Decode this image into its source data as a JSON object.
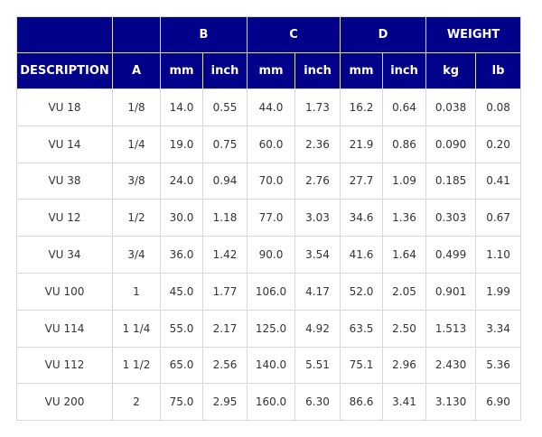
{
  "table": {
    "group_headers": {
      "b": "B",
      "c": "C",
      "d": "D",
      "weight": "WEIGHT"
    },
    "sub_headers": {
      "description": "DESCRIPTION",
      "a": "A",
      "b_mm": "mm",
      "b_inch": "inch",
      "c_mm": "mm",
      "c_inch": "inch",
      "d_mm": "mm",
      "d_inch": "inch",
      "kg": "kg",
      "lb": "lb"
    },
    "rows": [
      [
        "VU 18",
        "1/8",
        "14.0",
        "0.55",
        "44.0",
        "1.73",
        "16.2",
        "0.64",
        "0.038",
        "0.08"
      ],
      [
        "VU 14",
        "1/4",
        "19.0",
        "0.75",
        "60.0",
        "2.36",
        "21.9",
        "0.86",
        "0.090",
        "0.20"
      ],
      [
        "VU 38",
        "3/8",
        "24.0",
        "0.94",
        "70.0",
        "2.76",
        "27.7",
        "1.09",
        "0.185",
        "0.41"
      ],
      [
        "VU 12",
        "1/2",
        "30.0",
        "1.18",
        "77.0",
        "3.03",
        "34.6",
        "1.36",
        "0.303",
        "0.67"
      ],
      [
        "VU 34",
        "3/4",
        "36.0",
        "1.42",
        "90.0",
        "3.54",
        "41.6",
        "1.64",
        "0.499",
        "1.10"
      ],
      [
        "VU 100",
        "1",
        "45.0",
        "1.77",
        "106.0",
        "4.17",
        "52.0",
        "2.05",
        "0.901",
        "1.99"
      ],
      [
        "VU 114",
        "1 1/4",
        "55.0",
        "2.17",
        "125.0",
        "4.92",
        "63.5",
        "2.50",
        "1.513",
        "3.34"
      ],
      [
        "VU 112",
        "1 1/2",
        "65.0",
        "2.56",
        "140.0",
        "5.51",
        "75.1",
        "2.96",
        "2.430",
        "5.36"
      ],
      [
        "VU 200",
        "2",
        "75.0",
        "2.95",
        "160.0",
        "6.30",
        "86.6",
        "3.41",
        "3.130",
        "6.90"
      ]
    ]
  }
}
